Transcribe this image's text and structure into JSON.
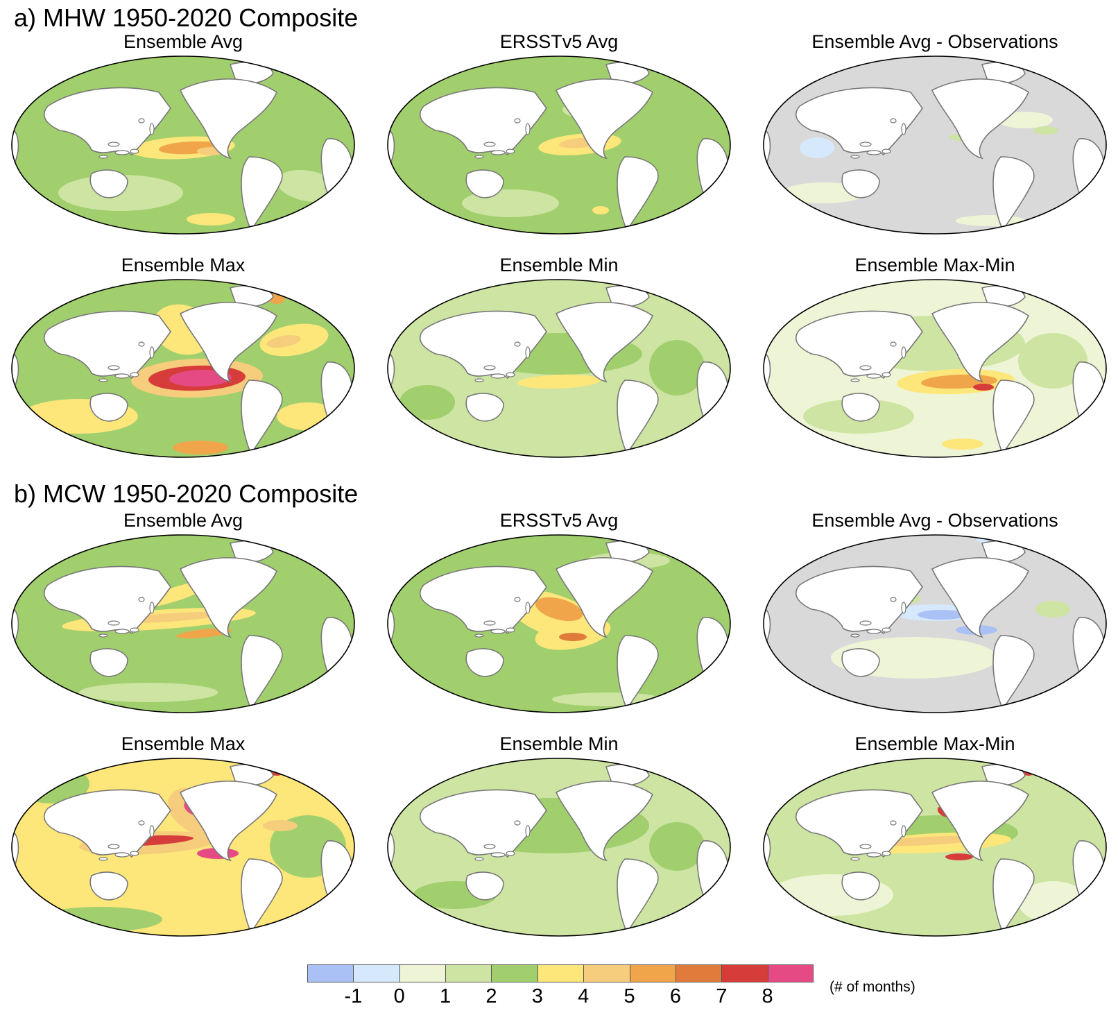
{
  "section_a": {
    "title": "a) MHW 1950-2020 Composite",
    "panels": [
      "Ensemble Avg",
      "ERSSTv5 Avg",
      "Ensemble Avg - Observations",
      "Ensemble Max",
      "Ensemble Min",
      "Ensemble Max-Min"
    ]
  },
  "section_b": {
    "title": "b) MCW 1950-2020 Composite",
    "panels": [
      "Ensemble Avg",
      "ERSSTv5 Avg",
      "Ensemble Avg - Observations",
      "Ensemble Max",
      "Ensemble Min",
      "Ensemble Max-Min"
    ]
  },
  "colorbar": {
    "units": "(# of months)",
    "tick_labels": [
      "-1",
      "0",
      "1",
      "2",
      "3",
      "4",
      "5",
      "6",
      "7",
      "8"
    ],
    "colors": [
      "#a9c1f5",
      "#d6e8fb",
      "#eef5d6",
      "#cde4a3",
      "#a2cf6e",
      "#fde67a",
      "#f6cd7c",
      "#f0a54a",
      "#e07b3c",
      "#d63d3a",
      "#e64a84"
    ]
  },
  "palette": {
    "land": "#ffffff",
    "coast": "#777777",
    "border": "#000000",
    "diff_background": "#d9d9d9"
  }
}
